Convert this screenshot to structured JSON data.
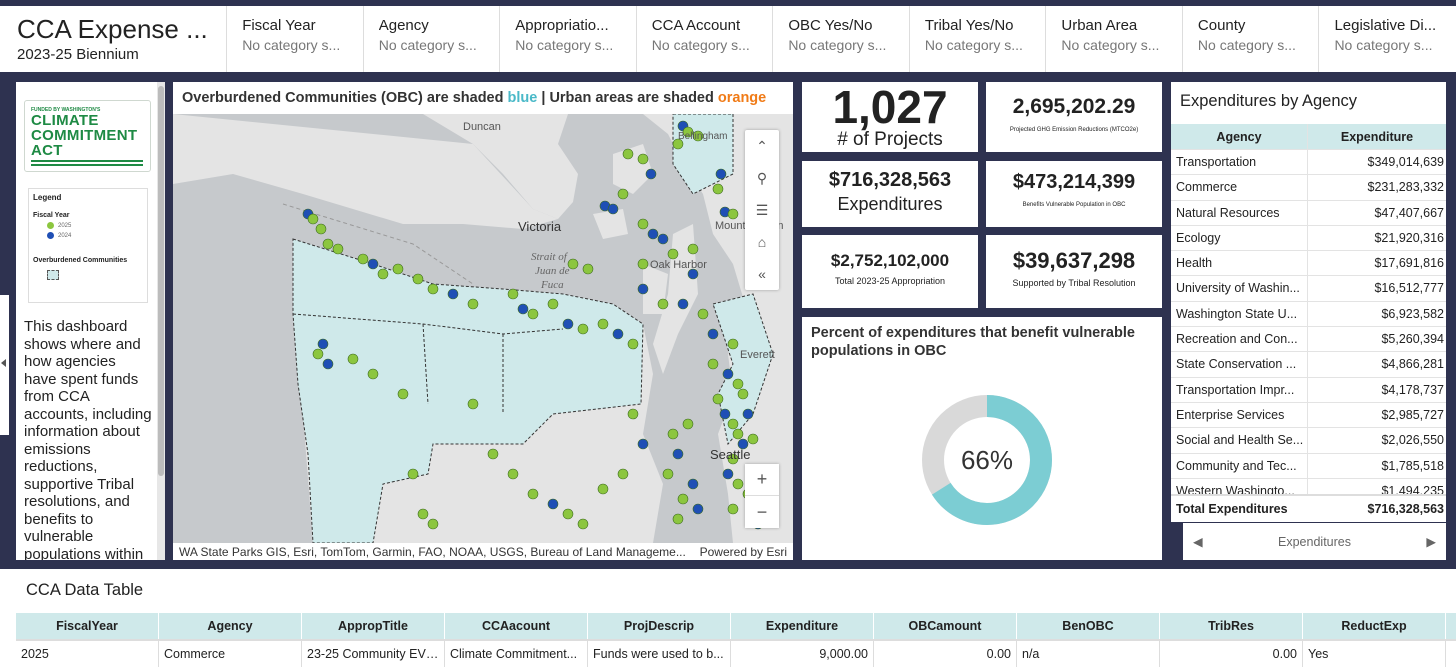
{
  "header": {
    "title": "CCA Expense ...",
    "subtitle": "2023-25 Biennium",
    "filters": [
      {
        "label": "Fiscal Year",
        "value": "No category s..."
      },
      {
        "label": "Agency",
        "value": "No category s..."
      },
      {
        "label": "Appropriatio...",
        "value": "No category s..."
      },
      {
        "label": "CCA Account",
        "value": "No category s..."
      },
      {
        "label": "OBC Yes/No",
        "value": "No category s..."
      },
      {
        "label": "Tribal Yes/No",
        "value": "No category s..."
      },
      {
        "label": "Urban Area",
        "value": "No category s..."
      },
      {
        "label": "County",
        "value": "No category s..."
      },
      {
        "label": "Legislative Di...",
        "value": "No category s..."
      }
    ]
  },
  "left": {
    "logo_small": "FUNDED BY WASHINGTON'S",
    "logo_line1": "CLIMATE",
    "logo_line2": "COMMITMENT",
    "logo_line3": "ACT",
    "legend_title": "Legend",
    "legend_fy": "Fiscal Year",
    "legend_items": [
      {
        "label": "2025",
        "color": "#8cc63f"
      },
      {
        "label": "2024",
        "color": "#1f4fb5"
      }
    ],
    "legend_obc": "Overburdened Communities",
    "description": "This dashboard shows where and how agencies have spent funds from CCA accounts, including information about emissions reductions, supportive Tribal resolutions, and benefits to vulnerable populations within"
  },
  "map": {
    "title_a": "Overburdened Communities (OBC) are shaded ",
    "title_blue": "blue",
    "title_b": " | Urban areas are shaded ",
    "title_orange": "orange",
    "places": {
      "duncan": "Duncan",
      "bellingham": "Bellingham",
      "victoria": "Victoria",
      "strait": "Strait of",
      "juan": "Juan de",
      "fuca": "Fuca",
      "oak_harbor": "Oak Harbor",
      "mount_vernon": "Mount Vernon",
      "everett": "Everett",
      "seattle": "Seattle"
    },
    "attribution": "WA State Parks GIS, Esri, TomTom, Garmin, FAO, NOAA, USGS, Bureau of Land Manageme...",
    "powered": "Powered by Esri"
  },
  "kpis": {
    "projects_value": "1,027",
    "projects_label": "# of Projects",
    "ghg_value": "2,695,202.29",
    "ghg_label": "Projected GHG Emission Reductions (MTCO2e)",
    "exp_value": "$716,328,563",
    "exp_label": "Expenditures",
    "vuln_value": "$473,214,399",
    "vuln_label": "Benefits Vulnerable Population in OBC",
    "approp_value": "$2,752,102,000",
    "approp_label": "Total 2023-25 Appropriation",
    "tribal_value": "$39,637,298",
    "tribal_label": "Supported by Tribal Resolution"
  },
  "gauge": {
    "title": "Percent of expenditures that benefit vulnerable populations in OBC",
    "percent": 66,
    "percent_label": "66%",
    "fill_color": "#7ccdd3",
    "track_color": "#d9d9d9"
  },
  "agency_table": {
    "title": "Expenditures by Agency",
    "col_agency": "Agency",
    "col_exp": "Expenditure",
    "rows": [
      {
        "agency": "Transportation",
        "exp": "$349,014,639"
      },
      {
        "agency": "Commerce",
        "exp": "$231,283,332"
      },
      {
        "agency": "Natural Resources",
        "exp": "$47,407,667"
      },
      {
        "agency": "Ecology",
        "exp": "$21,920,316"
      },
      {
        "agency": "Health",
        "exp": "$17,691,816"
      },
      {
        "agency": "University of Washin...",
        "exp": "$16,512,777"
      },
      {
        "agency": "Washington State U...",
        "exp": "$6,923,582"
      },
      {
        "agency": "Recreation and Con...",
        "exp": "$5,260,394"
      },
      {
        "agency": "State Conservation ...",
        "exp": "$4,866,281"
      },
      {
        "agency": "Transportation Impr...",
        "exp": "$4,178,737"
      },
      {
        "agency": "Enterprise Services",
        "exp": "$2,985,727"
      },
      {
        "agency": "Social and Health Se...",
        "exp": "$2,026,550"
      },
      {
        "agency": "Community and Tec...",
        "exp": "$1,785,518"
      },
      {
        "agency": "Western Washingto...",
        "exp": "$1,494,235"
      }
    ],
    "total_label": "Total Expenditures",
    "total_value": "$716,328,563",
    "pager_label": "Expenditures"
  },
  "data_table": {
    "title": "CCA Data Table",
    "columns": [
      "FiscalYear",
      "Agency",
      "AppropTitle",
      "CCAacount",
      "ProjDescrip",
      "Expenditure",
      "OBCamount",
      "BenOBC",
      "TribRes",
      "ReductExp"
    ],
    "row": [
      "2025",
      "Commerce",
      "23-25 Community EV ...",
      "Climate Commitment...",
      "Funds were used to b...",
      "9,000.00",
      "0.00",
      "n/a",
      "0.00",
      "Yes"
    ]
  }
}
